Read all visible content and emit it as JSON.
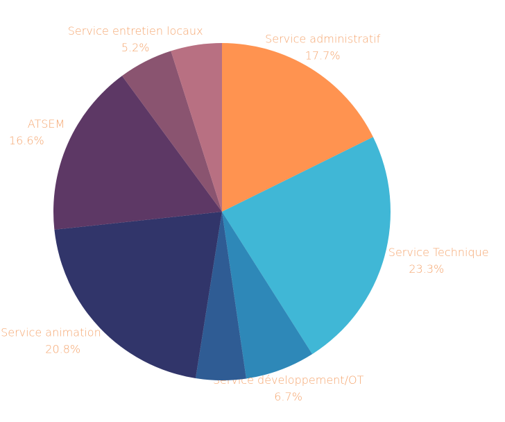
{
  "chart_data": {
    "type": "pie",
    "categories": [
      "Service administratif",
      "Service Technique",
      "Service développement/OT",
      null,
      "Service animation",
      "ATSEM",
      "Service entretien locaux",
      null
    ],
    "values": [
      17.7,
      23.3,
      6.7,
      4.8,
      20.8,
      16.6,
      5.2,
      4.9
    ],
    "value_labels": [
      "17.7%",
      "23.3%",
      "6.7%",
      null,
      "20.8%",
      "16.6%",
      "5.2%",
      null
    ],
    "colors": [
      "#ff9350",
      "#40b7d6",
      "#2e88b8",
      "#2f5c94",
      "#31356a",
      "#5d3865",
      "#8a5470",
      "#b87082"
    ]
  }
}
